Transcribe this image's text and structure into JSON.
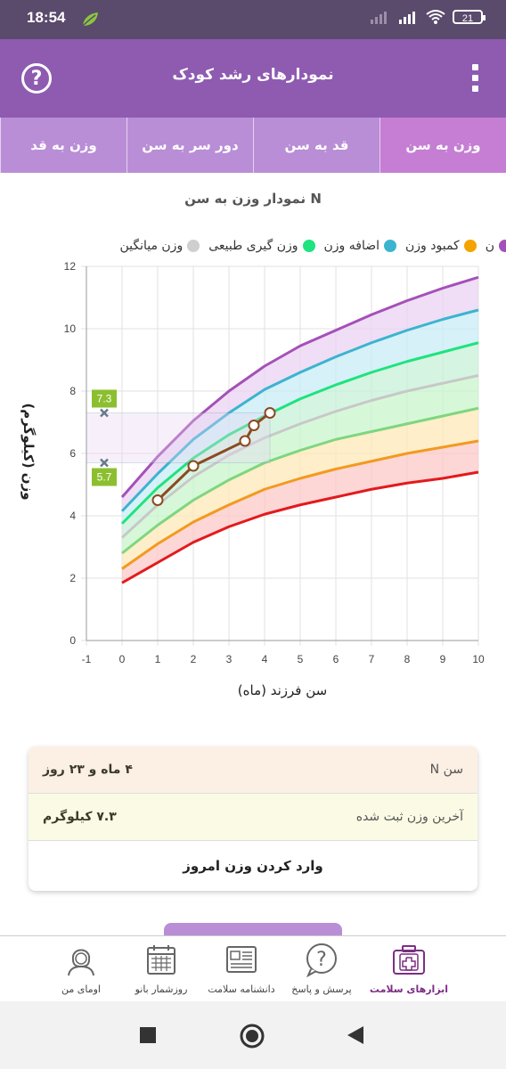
{
  "status": {
    "time": "18:54",
    "battery": "21"
  },
  "appbar": {
    "title": "نمودارهای رشد کودک",
    "help": "?"
  },
  "tabs": [
    {
      "label": "وزن به سن"
    },
    {
      "label": "قد به سن"
    },
    {
      "label": "دور سر به سن"
    },
    {
      "label": "وزن به قد"
    }
  ],
  "chart_title": "نمودار وزن به سن N",
  "legend": [
    {
      "label": "ن",
      "color": "#a550b8"
    },
    {
      "label": "کمبود وزن",
      "color": "#f5a300"
    },
    {
      "label": "اضافه وزن",
      "color": "#3bb4cf"
    },
    {
      "label": "وزن گیری طبیعی",
      "color": "#1ee37f"
    },
    {
      "label": "وزن میانگین",
      "color": "#cfcfcf"
    }
  ],
  "chart_data": {
    "type": "line",
    "xlabel": "سن فرزند (ماه)",
    "ylabel": "وزن (کیلوگرم)",
    "xlim": [
      -1,
      10
    ],
    "ylim": [
      0,
      12
    ],
    "x_ticks": [
      -1,
      0,
      1,
      2,
      3,
      4,
      5,
      6,
      7,
      8,
      9,
      10
    ],
    "y_ticks": [
      0,
      2,
      4,
      6,
      8,
      10,
      12
    ],
    "ages": [
      0,
      1,
      2,
      3,
      4,
      5,
      6,
      7,
      8,
      9,
      10
    ],
    "curves": [
      {
        "color": "#e31a1c",
        "values": [
          1.85,
          2.5,
          3.15,
          3.65,
          4.05,
          4.35,
          4.6,
          4.85,
          5.05,
          5.2,
          5.4
        ]
      },
      {
        "color": "#f29a1f",
        "values": [
          2.3,
          3.1,
          3.8,
          4.35,
          4.85,
          5.2,
          5.5,
          5.75,
          6.0,
          6.2,
          6.4
        ]
      },
      {
        "color": "#7fd67f",
        "values": [
          2.8,
          3.7,
          4.5,
          5.15,
          5.7,
          6.1,
          6.45,
          6.7,
          6.95,
          7.2,
          7.45
        ]
      },
      {
        "color": "#c8c8c8",
        "values": [
          3.3,
          4.35,
          5.25,
          5.95,
          6.5,
          6.95,
          7.35,
          7.7,
          8.0,
          8.25,
          8.5
        ]
      },
      {
        "color": "#1ee37f",
        "values": [
          3.75,
          4.9,
          5.85,
          6.6,
          7.2,
          7.75,
          8.2,
          8.6,
          8.95,
          9.25,
          9.55
        ]
      },
      {
        "color": "#3bb4cf",
        "values": [
          4.15,
          5.35,
          6.45,
          7.3,
          8.05,
          8.6,
          9.1,
          9.55,
          9.95,
          10.3,
          10.6
        ]
      },
      {
        "color": "#a550b8",
        "values": [
          4.6,
          5.9,
          7.05,
          8.0,
          8.8,
          9.45,
          9.95,
          10.45,
          10.9,
          11.3,
          11.65
        ]
      }
    ],
    "fills": [
      "#fcc8c8",
      "#fde8b8",
      "#c8f5cc",
      "#c8f0d8",
      "#c8ecf5",
      "#ead3f2"
    ],
    "child_series": {
      "color": "#8b4a1f",
      "points": [
        [
          1.0,
          4.5
        ],
        [
          2.0,
          5.6
        ],
        [
          3.45,
          6.4
        ],
        [
          3.7,
          6.9
        ],
        [
          4.15,
          7.3
        ]
      ]
    },
    "annotations": [
      {
        "label": "7.3",
        "value": 7.3
      },
      {
        "label": "5.7",
        "value": 5.7
      }
    ]
  },
  "info": {
    "age_label": "سن N",
    "age_value": "۴ ماه و ۲۳ روز",
    "weight_label": "آخرین وزن ثبت شده",
    "weight_value": "۷.۳ کیلوگرم",
    "action": "وارد کردن وزن امروز"
  },
  "nav": [
    {
      "label": "ابزارهای سلامت",
      "icon": "health-kit-icon",
      "active": true
    },
    {
      "label": "پرسش و پاسخ",
      "icon": "question-bubble-icon",
      "active": false
    },
    {
      "label": "دانشنامه سلامت",
      "icon": "newspaper-icon",
      "active": false
    },
    {
      "label": "روزشمار بانو",
      "icon": "calendar-icon",
      "active": false
    },
    {
      "label": "اومای من",
      "icon": "woman-avatar-icon",
      "active": false
    }
  ]
}
